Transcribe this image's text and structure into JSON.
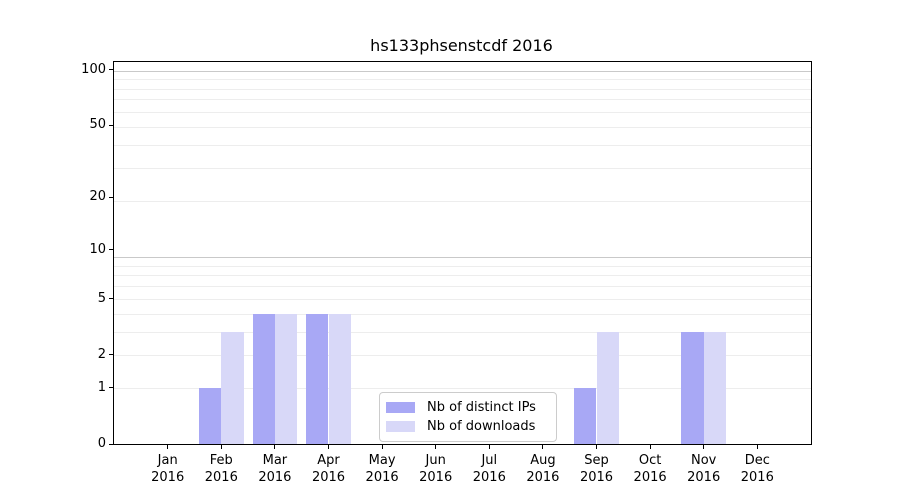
{
  "chart_data": {
    "type": "bar",
    "title": "hs133phsenstcdf 2016",
    "categories": [
      "Jan",
      "Feb",
      "Mar",
      "Apr",
      "May",
      "Jun",
      "Jul",
      "Aug",
      "Sep",
      "Oct",
      "Nov",
      "Dec"
    ],
    "x_tick_year": "2016",
    "series": [
      {
        "name": "Nb of distinct IPs",
        "color": "#a8a8f5",
        "values": [
          0,
          1,
          4,
          4,
          0,
          0,
          0,
          0,
          1,
          0,
          3,
          0
        ]
      },
      {
        "name": "Nb of downloads",
        "color": "#d8d8f8",
        "values": [
          0,
          3,
          4,
          4,
          0,
          0,
          0,
          0,
          3,
          0,
          3,
          0
        ]
      }
    ],
    "yscale": "log1p",
    "y_ticks": [
      0,
      1,
      2,
      5,
      10,
      20,
      50,
      100
    ],
    "ylim": [
      0,
      110
    ],
    "grid_u": [
      2,
      3,
      4,
      5,
      6,
      7,
      8,
      9,
      10,
      20,
      30,
      40,
      50,
      60,
      70,
      80,
      90,
      100
    ],
    "grid_major_u": [
      10,
      100
    ],
    "grid": "on",
    "legend_position": "lower center"
  },
  "colors": {
    "spine": "#000000",
    "grid_minor": "#ededed",
    "grid_major": "#c9c9c9",
    "background": "#ffffff"
  }
}
